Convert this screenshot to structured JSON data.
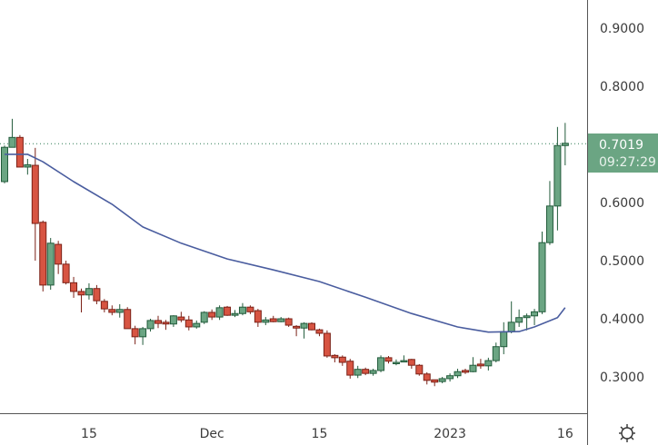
{
  "chart_data": {
    "type": "candlestick",
    "title": "",
    "ylim": [
      0.25,
      0.95
    ],
    "y_ticks": [
      "0.9000",
      "0.8000",
      "0.7000",
      "0.6000",
      "0.5000",
      "0.4000",
      "0.3000"
    ],
    "y_tick_labels": [
      "0.9000",
      "0.8000",
      "0.6000",
      "0.5000",
      "0.4000",
      "0.3000"
    ],
    "x_ticks": [
      {
        "date": "2022-11-15",
        "label": "15"
      },
      {
        "date": "2022-12-01",
        "label": "Dec"
      },
      {
        "date": "2022-12-15",
        "label": "15"
      },
      {
        "date": "2023-01-01",
        "label": "2023"
      },
      {
        "date": "2023-01-16",
        "label": "16"
      }
    ],
    "grid": false,
    "colors": {
      "up": "#6ba583",
      "up_border": "#225b3b",
      "down": "#d75442",
      "down_border": "#7b2117",
      "ma": "#4a5d9f",
      "last_price": "#6ba583"
    },
    "last_price": {
      "value": "0.7019",
      "countdown": "09:27:29"
    },
    "candles_columns": [
      "date",
      "open",
      "high",
      "low",
      "close"
    ],
    "candles": [
      [
        "2022-11-04",
        0.636,
        0.698,
        0.633,
        0.695
      ],
      [
        "2022-11-05",
        0.695,
        0.744,
        0.695,
        0.712
      ],
      [
        "2022-11-06",
        0.712,
        0.716,
        0.661,
        0.661
      ],
      [
        "2022-11-07",
        0.661,
        0.675,
        0.648,
        0.665
      ],
      [
        "2022-11-08",
        0.664,
        0.694,
        0.5,
        0.564
      ],
      [
        "2022-11-09",
        0.566,
        0.569,
        0.447,
        0.458
      ],
      [
        "2022-11-10",
        0.458,
        0.539,
        0.45,
        0.53
      ],
      [
        "2022-11-11",
        0.528,
        0.534,
        0.477,
        0.494
      ],
      [
        "2022-11-12",
        0.494,
        0.5,
        0.459,
        0.462
      ],
      [
        "2022-11-13",
        0.462,
        0.472,
        0.436,
        0.447
      ],
      [
        "2022-11-14",
        0.447,
        0.452,
        0.411,
        0.441
      ],
      [
        "2022-11-15",
        0.441,
        0.461,
        0.433,
        0.452
      ],
      [
        "2022-11-16",
        0.452,
        0.458,
        0.425,
        0.431
      ],
      [
        "2022-11-17",
        0.43,
        0.434,
        0.411,
        0.417
      ],
      [
        "2022-11-18",
        0.416,
        0.423,
        0.406,
        0.411
      ],
      [
        "2022-11-19",
        0.411,
        0.425,
        0.402,
        0.416
      ],
      [
        "2022-11-20",
        0.416,
        0.42,
        0.383,
        0.383
      ],
      [
        "2022-11-21",
        0.383,
        0.388,
        0.356,
        0.369
      ],
      [
        "2022-11-22",
        0.369,
        0.386,
        0.355,
        0.383
      ],
      [
        "2022-11-23",
        0.383,
        0.4,
        0.378,
        0.397
      ],
      [
        "2022-11-24",
        0.397,
        0.405,
        0.384,
        0.392
      ],
      [
        "2022-11-25",
        0.394,
        0.398,
        0.381,
        0.391
      ],
      [
        "2022-11-26",
        0.391,
        0.406,
        0.386,
        0.405
      ],
      [
        "2022-11-27",
        0.403,
        0.412,
        0.394,
        0.398
      ],
      [
        "2022-11-28",
        0.398,
        0.405,
        0.38,
        0.386
      ],
      [
        "2022-11-29",
        0.386,
        0.397,
        0.383,
        0.392
      ],
      [
        "2022-11-30",
        0.394,
        0.413,
        0.391,
        0.411
      ],
      [
        "2022-12-01",
        0.411,
        0.416,
        0.398,
        0.403
      ],
      [
        "2022-12-02",
        0.403,
        0.423,
        0.398,
        0.419
      ],
      [
        "2022-12-03",
        0.42,
        0.422,
        0.405,
        0.406
      ],
      [
        "2022-12-04",
        0.406,
        0.415,
        0.403,
        0.409
      ],
      [
        "2022-12-05",
        0.409,
        0.427,
        0.406,
        0.42
      ],
      [
        "2022-12-06",
        0.42,
        0.423,
        0.408,
        0.412
      ],
      [
        "2022-12-07",
        0.414,
        0.417,
        0.386,
        0.394
      ],
      [
        "2022-12-08",
        0.394,
        0.403,
        0.389,
        0.398
      ],
      [
        "2022-12-09",
        0.4,
        0.405,
        0.394,
        0.395
      ],
      [
        "2022-12-10",
        0.395,
        0.403,
        0.394,
        0.4
      ],
      [
        "2022-12-11",
        0.4,
        0.402,
        0.386,
        0.389
      ],
      [
        "2022-12-12",
        0.387,
        0.389,
        0.37,
        0.384
      ],
      [
        "2022-12-13",
        0.384,
        0.394,
        0.366,
        0.392
      ],
      [
        "2022-12-14",
        0.392,
        0.394,
        0.38,
        0.381
      ],
      [
        "2022-12-15",
        0.381,
        0.383,
        0.37,
        0.375
      ],
      [
        "2022-12-16",
        0.375,
        0.38,
        0.333,
        0.336
      ],
      [
        "2022-12-17",
        0.337,
        0.339,
        0.325,
        0.333
      ],
      [
        "2022-12-18",
        0.334,
        0.337,
        0.319,
        0.325
      ],
      [
        "2022-12-19",
        0.327,
        0.331,
        0.297,
        0.303
      ],
      [
        "2022-12-20",
        0.303,
        0.319,
        0.298,
        0.313
      ],
      [
        "2022-12-21",
        0.313,
        0.316,
        0.303,
        0.306
      ],
      [
        "2022-12-22",
        0.306,
        0.314,
        0.302,
        0.311
      ],
      [
        "2022-12-23",
        0.311,
        0.337,
        0.308,
        0.333
      ],
      [
        "2022-12-24",
        0.333,
        0.336,
        0.323,
        0.327
      ],
      [
        "2022-12-25",
        0.325,
        0.33,
        0.32,
        0.325
      ],
      [
        "2022-12-26",
        0.327,
        0.337,
        0.325,
        0.328
      ],
      [
        "2022-12-27",
        0.33,
        0.331,
        0.314,
        0.32
      ],
      [
        "2022-12-28",
        0.32,
        0.322,
        0.302,
        0.305
      ],
      [
        "2022-12-29",
        0.305,
        0.308,
        0.287,
        0.294
      ],
      [
        "2022-12-30",
        0.295,
        0.295,
        0.284,
        0.291
      ],
      [
        "2022-12-31",
        0.292,
        0.3,
        0.289,
        0.297
      ],
      [
        "2023-01-01",
        0.297,
        0.306,
        0.292,
        0.302
      ],
      [
        "2023-01-02",
        0.302,
        0.314,
        0.298,
        0.309
      ],
      [
        "2023-01-03",
        0.311,
        0.314,
        0.305,
        0.308
      ],
      [
        "2023-01-04",
        0.309,
        0.334,
        0.308,
        0.32
      ],
      [
        "2023-01-05",
        0.322,
        0.331,
        0.314,
        0.319
      ],
      [
        "2023-01-06",
        0.319,
        0.333,
        0.311,
        0.328
      ],
      [
        "2023-01-07",
        0.328,
        0.359,
        0.325,
        0.352
      ],
      [
        "2023-01-08",
        0.352,
        0.394,
        0.339,
        0.378
      ],
      [
        "2023-01-09",
        0.378,
        0.43,
        0.375,
        0.394
      ],
      [
        "2023-01-10",
        0.394,
        0.416,
        0.386,
        0.402
      ],
      [
        "2023-01-11",
        0.402,
        0.409,
        0.38,
        0.405
      ],
      [
        "2023-01-12",
        0.405,
        0.417,
        0.389,
        0.412
      ],
      [
        "2023-01-13",
        0.412,
        0.55,
        0.408,
        0.531
      ],
      [
        "2023-01-14",
        0.531,
        0.637,
        0.527,
        0.594
      ],
      [
        "2023-01-15",
        0.594,
        0.73,
        0.552,
        0.698
      ],
      [
        "2023-01-16",
        0.698,
        0.737,
        0.664,
        0.7019
      ]
    ],
    "moving_average": [
      [
        "2022-11-04",
        0.683
      ],
      [
        "2022-11-07",
        0.683
      ],
      [
        "2022-11-09",
        0.67
      ],
      [
        "2022-11-13",
        0.636
      ],
      [
        "2022-11-18",
        0.597
      ],
      [
        "2022-11-22",
        0.558
      ],
      [
        "2022-11-27",
        0.53
      ],
      [
        "2022-12-03",
        0.503
      ],
      [
        "2022-12-09",
        0.484
      ],
      [
        "2022-12-15",
        0.464
      ],
      [
        "2022-12-21",
        0.437
      ],
      [
        "2022-12-27",
        0.409
      ],
      [
        "2023-01-02",
        0.386
      ],
      [
        "2023-01-06",
        0.377
      ],
      [
        "2023-01-10",
        0.378
      ],
      [
        "2023-01-12",
        0.386
      ],
      [
        "2023-01-15",
        0.402
      ],
      [
        "2023-01-16",
        0.419
      ]
    ]
  },
  "settings_icon": "gear-icon"
}
